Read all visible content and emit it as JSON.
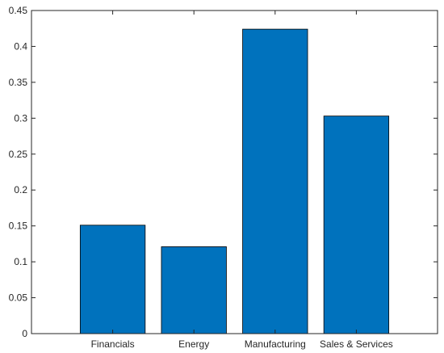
{
  "chart_data": {
    "type": "bar",
    "categories": [
      "Financials",
      "Energy",
      "Manufacturing",
      "Sales & Services"
    ],
    "values": [
      0.151,
      0.121,
      0.424,
      0.303
    ],
    "ylim": [
      0,
      0.45
    ],
    "yticks": [
      0,
      0.05,
      0.1,
      0.15,
      0.2,
      0.25,
      0.3,
      0.35,
      0.4,
      0.45
    ],
    "ytick_labels": [
      "0",
      "0.05",
      "0.1",
      "0.15",
      "0.2",
      "0.25",
      "0.3",
      "0.35",
      "0.4",
      "0.45"
    ],
    "xlim": [
      0,
      5
    ],
    "title": "",
    "xlabel": "",
    "ylabel": "",
    "grid": false,
    "legend": "none",
    "bar_color": "#0072BD",
    "edge_color": "#000000"
  }
}
